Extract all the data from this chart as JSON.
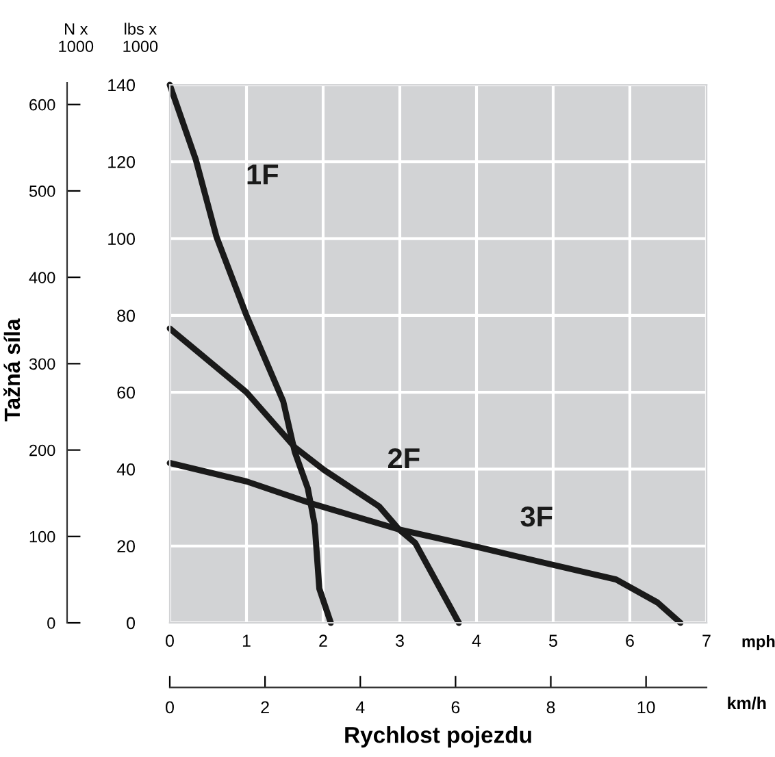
{
  "chart_data": {
    "type": "line",
    "xlabel": "Rychlost pojezdu",
    "ylabel": "Tažná síla",
    "y2label": "lbs x\n1000",
    "x2label": "km/h",
    "xlim": [
      0,
      7
    ],
    "xticks": [
      0,
      1,
      2,
      3,
      4,
      5,
      6,
      7
    ],
    "ylim": [
      0,
      622.75
    ],
    "yticks": [
      0,
      100,
      200,
      300,
      400,
      500,
      600
    ],
    "y2lim": [
      0,
      140
    ],
    "y2ticks": [
      0,
      20,
      40,
      60,
      80,
      100,
      120,
      140
    ],
    "x2lim": [
      0,
      11.27
    ],
    "x2ticks": [
      0,
      2,
      4,
      6,
      8,
      10
    ],
    "grid": true,
    "marker": "none",
    "line_style": "solid",
    "series": [
      {
        "name": "1F",
        "axis": "y2",
        "color": "#1a1a1a",
        "x": [
          0,
          0.34,
          0.61,
          1.0,
          1.48,
          1.63,
          1.8,
          1.89,
          1.95,
          2.1
        ],
        "values": [
          140,
          120.5,
          100.4,
          80,
          57.6,
          44.5,
          35,
          25.5,
          8.9,
          0
        ]
      },
      {
        "name": "2F",
        "axis": "y2",
        "color": "#1a1a1a",
        "x": [
          0,
          1.0,
          1.63,
          2.01,
          2.73,
          2.99,
          3.2,
          3.77
        ],
        "values": [
          76.6,
          60,
          45.7,
          39.8,
          30.3,
          24.3,
          20.8,
          0
        ]
      },
      {
        "name": "3F",
        "axis": "y2",
        "color": "#1a1a1a",
        "x": [
          0,
          1.0,
          1.86,
          2.99,
          4.04,
          4.93,
          5.82,
          6.36,
          6.66
        ],
        "values": [
          41.6,
          36.8,
          31,
          24.3,
          19.6,
          15.4,
          11.3,
          5.3,
          0
        ]
      }
    ],
    "annotations": [
      "N x\n1000",
      "mph"
    ]
  }
}
